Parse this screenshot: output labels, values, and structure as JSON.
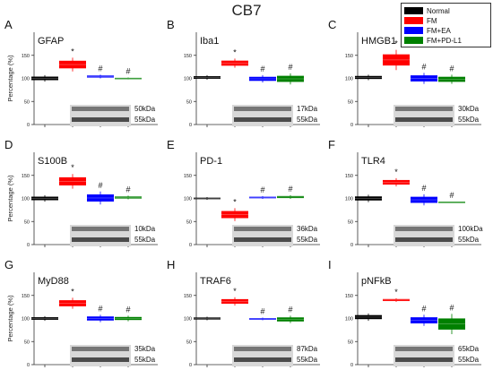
{
  "figure": {
    "title": "CB7",
    "legend": [
      {
        "label": "Normal",
        "color": "#000000"
      },
      {
        "label": "FM",
        "color": "#ff0000"
      },
      {
        "label": "FM+EA",
        "color": "#0000ff"
      },
      {
        "label": "FM+PD-L1",
        "color": "#008000"
      }
    ]
  },
  "chart_data": [
    {
      "type": "bar",
      "panel": "A",
      "title": "GFAP",
      "ylabel": "Percentage (%)",
      "ylim": [
        0,
        200
      ],
      "yticks": [
        0,
        50,
        100,
        150
      ],
      "categories": [
        "Normal",
        "FM",
        "FM+EA",
        "FM+PD-L1"
      ],
      "values": [
        100,
        130,
        104,
        100
      ],
      "errors": [
        7,
        15,
        4,
        2
      ],
      "markers": [
        "",
        "*",
        "#",
        "#"
      ],
      "blot_labels": [
        "50kDa",
        "55kDa"
      ]
    },
    {
      "type": "bar",
      "panel": "B",
      "title": "Iba1",
      "ylabel": "",
      "ylim": [
        0,
        200
      ],
      "yticks": [
        0,
        50,
        100,
        150
      ],
      "categories": [
        "Normal",
        "FM",
        "FM+EA",
        "FM+PD-L1"
      ],
      "values": [
        102,
        133,
        99,
        99
      ],
      "errors": [
        5,
        10,
        8,
        12
      ],
      "markers": [
        "",
        "*",
        "#",
        "#"
      ],
      "blot_labels": [
        "17kDa",
        "55kDa"
      ]
    },
    {
      "type": "bar",
      "panel": "C",
      "title": "HMGB1",
      "ylabel": "",
      "ylim": [
        0,
        200
      ],
      "yticks": [
        0,
        50,
        100,
        150
      ],
      "categories": [
        "Normal",
        "FM",
        "FM+EA",
        "FM+PD-L1"
      ],
      "values": [
        102,
        140,
        100,
        98
      ],
      "errors": [
        6,
        22,
        12,
        10
      ],
      "markers": [
        "",
        "*",
        "#",
        "#"
      ],
      "blot_labels": [
        "30kDa",
        "55kDa"
      ]
    },
    {
      "type": "bar",
      "panel": "D",
      "title": "S100B",
      "ylabel": "Percentage (%)",
      "ylim": [
        0,
        200
      ],
      "yticks": [
        0,
        50,
        100,
        150
      ],
      "categories": [
        "Normal",
        "FM",
        "FM+EA",
        "FM+PD-L1"
      ],
      "values": [
        100,
        137,
        101,
        102
      ],
      "errors": [
        7,
        16,
        14,
        4
      ],
      "markers": [
        "",
        "*",
        "#",
        "#"
      ],
      "blot_labels": [
        "10kDa",
        "55kDa"
      ]
    },
    {
      "type": "bar",
      "panel": "E",
      "title": "PD-1",
      "ylabel": "",
      "ylim": [
        0,
        200
      ],
      "yticks": [
        0,
        50,
        100,
        150
      ],
      "categories": [
        "Normal",
        "FM",
        "FM+EA",
        "FM+PD-L1"
      ],
      "values": [
        100,
        65,
        102,
        103
      ],
      "errors": [
        3,
        14,
        3,
        4
      ],
      "markers": [
        "",
        "*",
        "#",
        "#"
      ],
      "blot_labels": [
        "36kDa",
        "55kDa"
      ]
    },
    {
      "type": "bar",
      "panel": "F",
      "title": "TLR4",
      "ylabel": "",
      "ylim": [
        0,
        200
      ],
      "yticks": [
        0,
        50,
        100,
        150
      ],
      "categories": [
        "Normal",
        "FM",
        "FM+EA",
        "FM+PD-L1"
      ],
      "values": [
        100,
        135,
        97,
        92
      ],
      "errors": [
        8,
        9,
        12,
        1
      ],
      "markers": [
        "",
        "*",
        "#",
        "#"
      ],
      "blot_labels": [
        "100kDa",
        "55kDa"
      ]
    },
    {
      "type": "bar",
      "panel": "G",
      "title": "MyD88",
      "ylabel": "Percentage (%)",
      "ylim": [
        0,
        200
      ],
      "yticks": [
        0,
        50,
        100,
        150
      ],
      "categories": [
        "Normal",
        "FM",
        "FM+EA",
        "FM+PD-L1"
      ],
      "values": [
        100,
        133,
        100,
        100
      ],
      "errors": [
        5,
        12,
        8,
        6
      ],
      "markers": [
        "",
        "*",
        "#",
        "#"
      ],
      "blot_labels": [
        "35kDa",
        "55kDa"
      ]
    },
    {
      "type": "bar",
      "panel": "H",
      "title": "TRAF6",
      "ylabel": "",
      "ylim": [
        0,
        200
      ],
      "yticks": [
        0,
        50,
        100,
        150
      ],
      "categories": [
        "Normal",
        "FM",
        "FM+EA",
        "FM+PD-L1"
      ],
      "values": [
        100,
        137,
        99,
        98
      ],
      "errors": [
        4,
        9,
        3,
        8
      ],
      "markers": [
        "",
        "*",
        "#",
        "#"
      ],
      "blot_labels": [
        "87kDa",
        "55kDa"
      ]
    },
    {
      "type": "bar",
      "panel": "I",
      "title": "pNFkB",
      "ylabel": "",
      "ylim": [
        0,
        200
      ],
      "yticks": [
        0,
        50,
        100,
        150
      ],
      "categories": [
        "Normal",
        "FM",
        "FM+EA",
        "FM+PD-L1"
      ],
      "values": [
        103,
        140,
        96,
        88
      ],
      "errors": [
        8,
        4,
        12,
        22
      ],
      "markers": [
        "",
        "*",
        "#",
        "#"
      ],
      "blot_labels": [
        "65kDa",
        "55kDa"
      ]
    }
  ]
}
